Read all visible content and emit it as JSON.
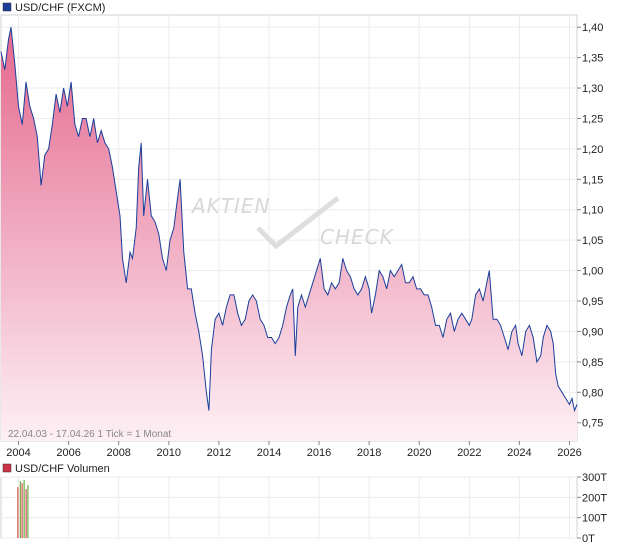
{
  "chart_data": [
    {
      "type": "area",
      "title": "USD/CHF (FXCM)",
      "footer": "22.04.03 - 17.04.26   1 Tick = 1 Monat",
      "watermark_top": "AKTIEN",
      "watermark_bottom": "CHECK",
      "xlabel": "",
      "ylabel": "",
      "xlim": [
        2003.3,
        2026.3
      ],
      "ylim": [
        0.72,
        1.42
      ],
      "x_ticks": [
        "2004",
        "2006",
        "2008",
        "2010",
        "2012",
        "2014",
        "2016",
        "2018",
        "2020",
        "2022",
        "2024",
        "2026"
      ],
      "y_ticks": [
        "1,40",
        "1,35",
        "1,30",
        "1,25",
        "1,20",
        "1,15",
        "1,10",
        "1,05",
        "1,00",
        "0,95",
        "0,90",
        "0,85",
        "0,80",
        "0,75"
      ],
      "grid": true,
      "colors": {
        "line": "#1a3e9a",
        "fill_top": "#e4678f",
        "fill_bottom": "#fdf0f4",
        "legend_box": "#1a3e9a"
      },
      "series": [
        {
          "name": "USD/CHF (FXCM)",
          "points": [
            [
              2003.3,
              1.36
            ],
            [
              2003.45,
              1.33
            ],
            [
              2003.6,
              1.38
            ],
            [
              2003.7,
              1.4
            ],
            [
              2003.85,
              1.34
            ],
            [
              2004.0,
              1.27
            ],
            [
              2004.15,
              1.24
            ],
            [
              2004.3,
              1.31
            ],
            [
              2004.45,
              1.27
            ],
            [
              2004.6,
              1.25
            ],
            [
              2004.75,
              1.22
            ],
            [
              2004.9,
              1.14
            ],
            [
              2005.05,
              1.19
            ],
            [
              2005.2,
              1.2
            ],
            [
              2005.35,
              1.24
            ],
            [
              2005.5,
              1.29
            ],
            [
              2005.65,
              1.26
            ],
            [
              2005.8,
              1.3
            ],
            [
              2005.95,
              1.27
            ],
            [
              2006.1,
              1.31
            ],
            [
              2006.25,
              1.24
            ],
            [
              2006.4,
              1.22
            ],
            [
              2006.55,
              1.25
            ],
            [
              2006.7,
              1.25
            ],
            [
              2006.85,
              1.22
            ],
            [
              2007.0,
              1.25
            ],
            [
              2007.15,
              1.21
            ],
            [
              2007.3,
              1.23
            ],
            [
              2007.45,
              1.21
            ],
            [
              2007.6,
              1.2
            ],
            [
              2007.75,
              1.17
            ],
            [
              2007.9,
              1.13
            ],
            [
              2008.05,
              1.09
            ],
            [
              2008.15,
              1.02
            ],
            [
              2008.3,
              0.98
            ],
            [
              2008.45,
              1.03
            ],
            [
              2008.55,
              1.02
            ],
            [
              2008.7,
              1.07
            ],
            [
              2008.8,
              1.17
            ],
            [
              2008.9,
              1.21
            ],
            [
              2009.0,
              1.09
            ],
            [
              2009.15,
              1.15
            ],
            [
              2009.3,
              1.09
            ],
            [
              2009.45,
              1.08
            ],
            [
              2009.6,
              1.06
            ],
            [
              2009.75,
              1.02
            ],
            [
              2009.9,
              1.0
            ],
            [
              2010.05,
              1.05
            ],
            [
              2010.2,
              1.07
            ],
            [
              2010.35,
              1.12
            ],
            [
              2010.45,
              1.15
            ],
            [
              2010.6,
              1.03
            ],
            [
              2010.75,
              0.97
            ],
            [
              2010.9,
              0.97
            ],
            [
              2011.05,
              0.93
            ],
            [
              2011.2,
              0.9
            ],
            [
              2011.35,
              0.86
            ],
            [
              2011.5,
              0.8
            ],
            [
              2011.6,
              0.77
            ],
            [
              2011.7,
              0.87
            ],
            [
              2011.85,
              0.92
            ],
            [
              2012.0,
              0.93
            ],
            [
              2012.15,
              0.91
            ],
            [
              2012.3,
              0.94
            ],
            [
              2012.45,
              0.96
            ],
            [
              2012.6,
              0.96
            ],
            [
              2012.75,
              0.93
            ],
            [
              2012.9,
              0.91
            ],
            [
              2013.05,
              0.92
            ],
            [
              2013.2,
              0.95
            ],
            [
              2013.35,
              0.96
            ],
            [
              2013.5,
              0.95
            ],
            [
              2013.65,
              0.92
            ],
            [
              2013.8,
              0.91
            ],
            [
              2013.95,
              0.89
            ],
            [
              2014.1,
              0.89
            ],
            [
              2014.25,
              0.88
            ],
            [
              2014.4,
              0.89
            ],
            [
              2014.55,
              0.91
            ],
            [
              2014.7,
              0.94
            ],
            [
              2014.85,
              0.96
            ],
            [
              2014.95,
              0.97
            ],
            [
              2015.05,
              0.86
            ],
            [
              2015.15,
              0.94
            ],
            [
              2015.3,
              0.96
            ],
            [
              2015.45,
              0.94
            ],
            [
              2015.6,
              0.96
            ],
            [
              2015.75,
              0.98
            ],
            [
              2015.9,
              1.0
            ],
            [
              2016.05,
              1.02
            ],
            [
              2016.2,
              0.97
            ],
            [
              2016.35,
              0.96
            ],
            [
              2016.5,
              0.98
            ],
            [
              2016.65,
              0.97
            ],
            [
              2016.8,
              0.98
            ],
            [
              2016.95,
              1.02
            ],
            [
              2017.1,
              1.0
            ],
            [
              2017.25,
              0.99
            ],
            [
              2017.4,
              0.97
            ],
            [
              2017.55,
              0.96
            ],
            [
              2017.7,
              0.97
            ],
            [
              2017.85,
              0.99
            ],
            [
              2018.0,
              0.97
            ],
            [
              2018.1,
              0.93
            ],
            [
              2018.25,
              0.96
            ],
            [
              2018.4,
              1.0
            ],
            [
              2018.55,
              0.99
            ],
            [
              2018.7,
              0.97
            ],
            [
              2018.85,
              1.0
            ],
            [
              2019.0,
              0.99
            ],
            [
              2019.15,
              1.0
            ],
            [
              2019.3,
              1.01
            ],
            [
              2019.45,
              0.98
            ],
            [
              2019.6,
              0.98
            ],
            [
              2019.75,
              0.99
            ],
            [
              2019.9,
              0.97
            ],
            [
              2020.05,
              0.97
            ],
            [
              2020.2,
              0.96
            ],
            [
              2020.35,
              0.96
            ],
            [
              2020.5,
              0.94
            ],
            [
              2020.65,
              0.91
            ],
            [
              2020.8,
              0.91
            ],
            [
              2020.95,
              0.89
            ],
            [
              2021.1,
              0.92
            ],
            [
              2021.25,
              0.93
            ],
            [
              2021.4,
              0.9
            ],
            [
              2021.55,
              0.92
            ],
            [
              2021.7,
              0.93
            ],
            [
              2021.85,
              0.92
            ],
            [
              2022.0,
              0.91
            ],
            [
              2022.1,
              0.92
            ],
            [
              2022.25,
              0.96
            ],
            [
              2022.4,
              0.97
            ],
            [
              2022.55,
              0.95
            ],
            [
              2022.7,
              0.98
            ],
            [
              2022.8,
              1.0
            ],
            [
              2022.95,
              0.92
            ],
            [
              2023.1,
              0.92
            ],
            [
              2023.25,
              0.91
            ],
            [
              2023.4,
              0.89
            ],
            [
              2023.55,
              0.87
            ],
            [
              2023.7,
              0.9
            ],
            [
              2023.85,
              0.91
            ],
            [
              2023.95,
              0.88
            ],
            [
              2024.1,
              0.86
            ],
            [
              2024.25,
              0.9
            ],
            [
              2024.4,
              0.91
            ],
            [
              2024.55,
              0.89
            ],
            [
              2024.7,
              0.85
            ],
            [
              2024.85,
              0.86
            ],
            [
              2024.95,
              0.89
            ],
            [
              2025.1,
              0.91
            ],
            [
              2025.25,
              0.9
            ],
            [
              2025.35,
              0.88
            ],
            [
              2025.45,
              0.83
            ],
            [
              2025.55,
              0.81
            ],
            [
              2025.7,
              0.8
            ],
            [
              2025.85,
              0.79
            ],
            [
              2026.0,
              0.78
            ],
            [
              2026.1,
              0.79
            ],
            [
              2026.2,
              0.77
            ],
            [
              2026.3,
              0.78
            ]
          ]
        }
      ]
    },
    {
      "type": "bar",
      "title": "USD/CHF Volumen",
      "y_ticks": [
        "300T",
        "200T",
        "100T",
        "0T"
      ],
      "ylim": [
        0,
        300
      ],
      "xlim": [
        2003.3,
        2026.3
      ],
      "grid": true,
      "colors": {
        "bar": "#6ab04c",
        "bar_alt": "#d9534f",
        "legend_box": "#cc3344"
      },
      "series": [
        {
          "name": "USD/CHF Volumen",
          "points": [
            [
              2003.95,
              250
            ],
            [
              2004.05,
              280
            ],
            [
              2004.12,
              270
            ],
            [
              2004.2,
              285
            ],
            [
              2004.28,
              240
            ],
            [
              2004.35,
              260
            ]
          ]
        }
      ]
    }
  ]
}
